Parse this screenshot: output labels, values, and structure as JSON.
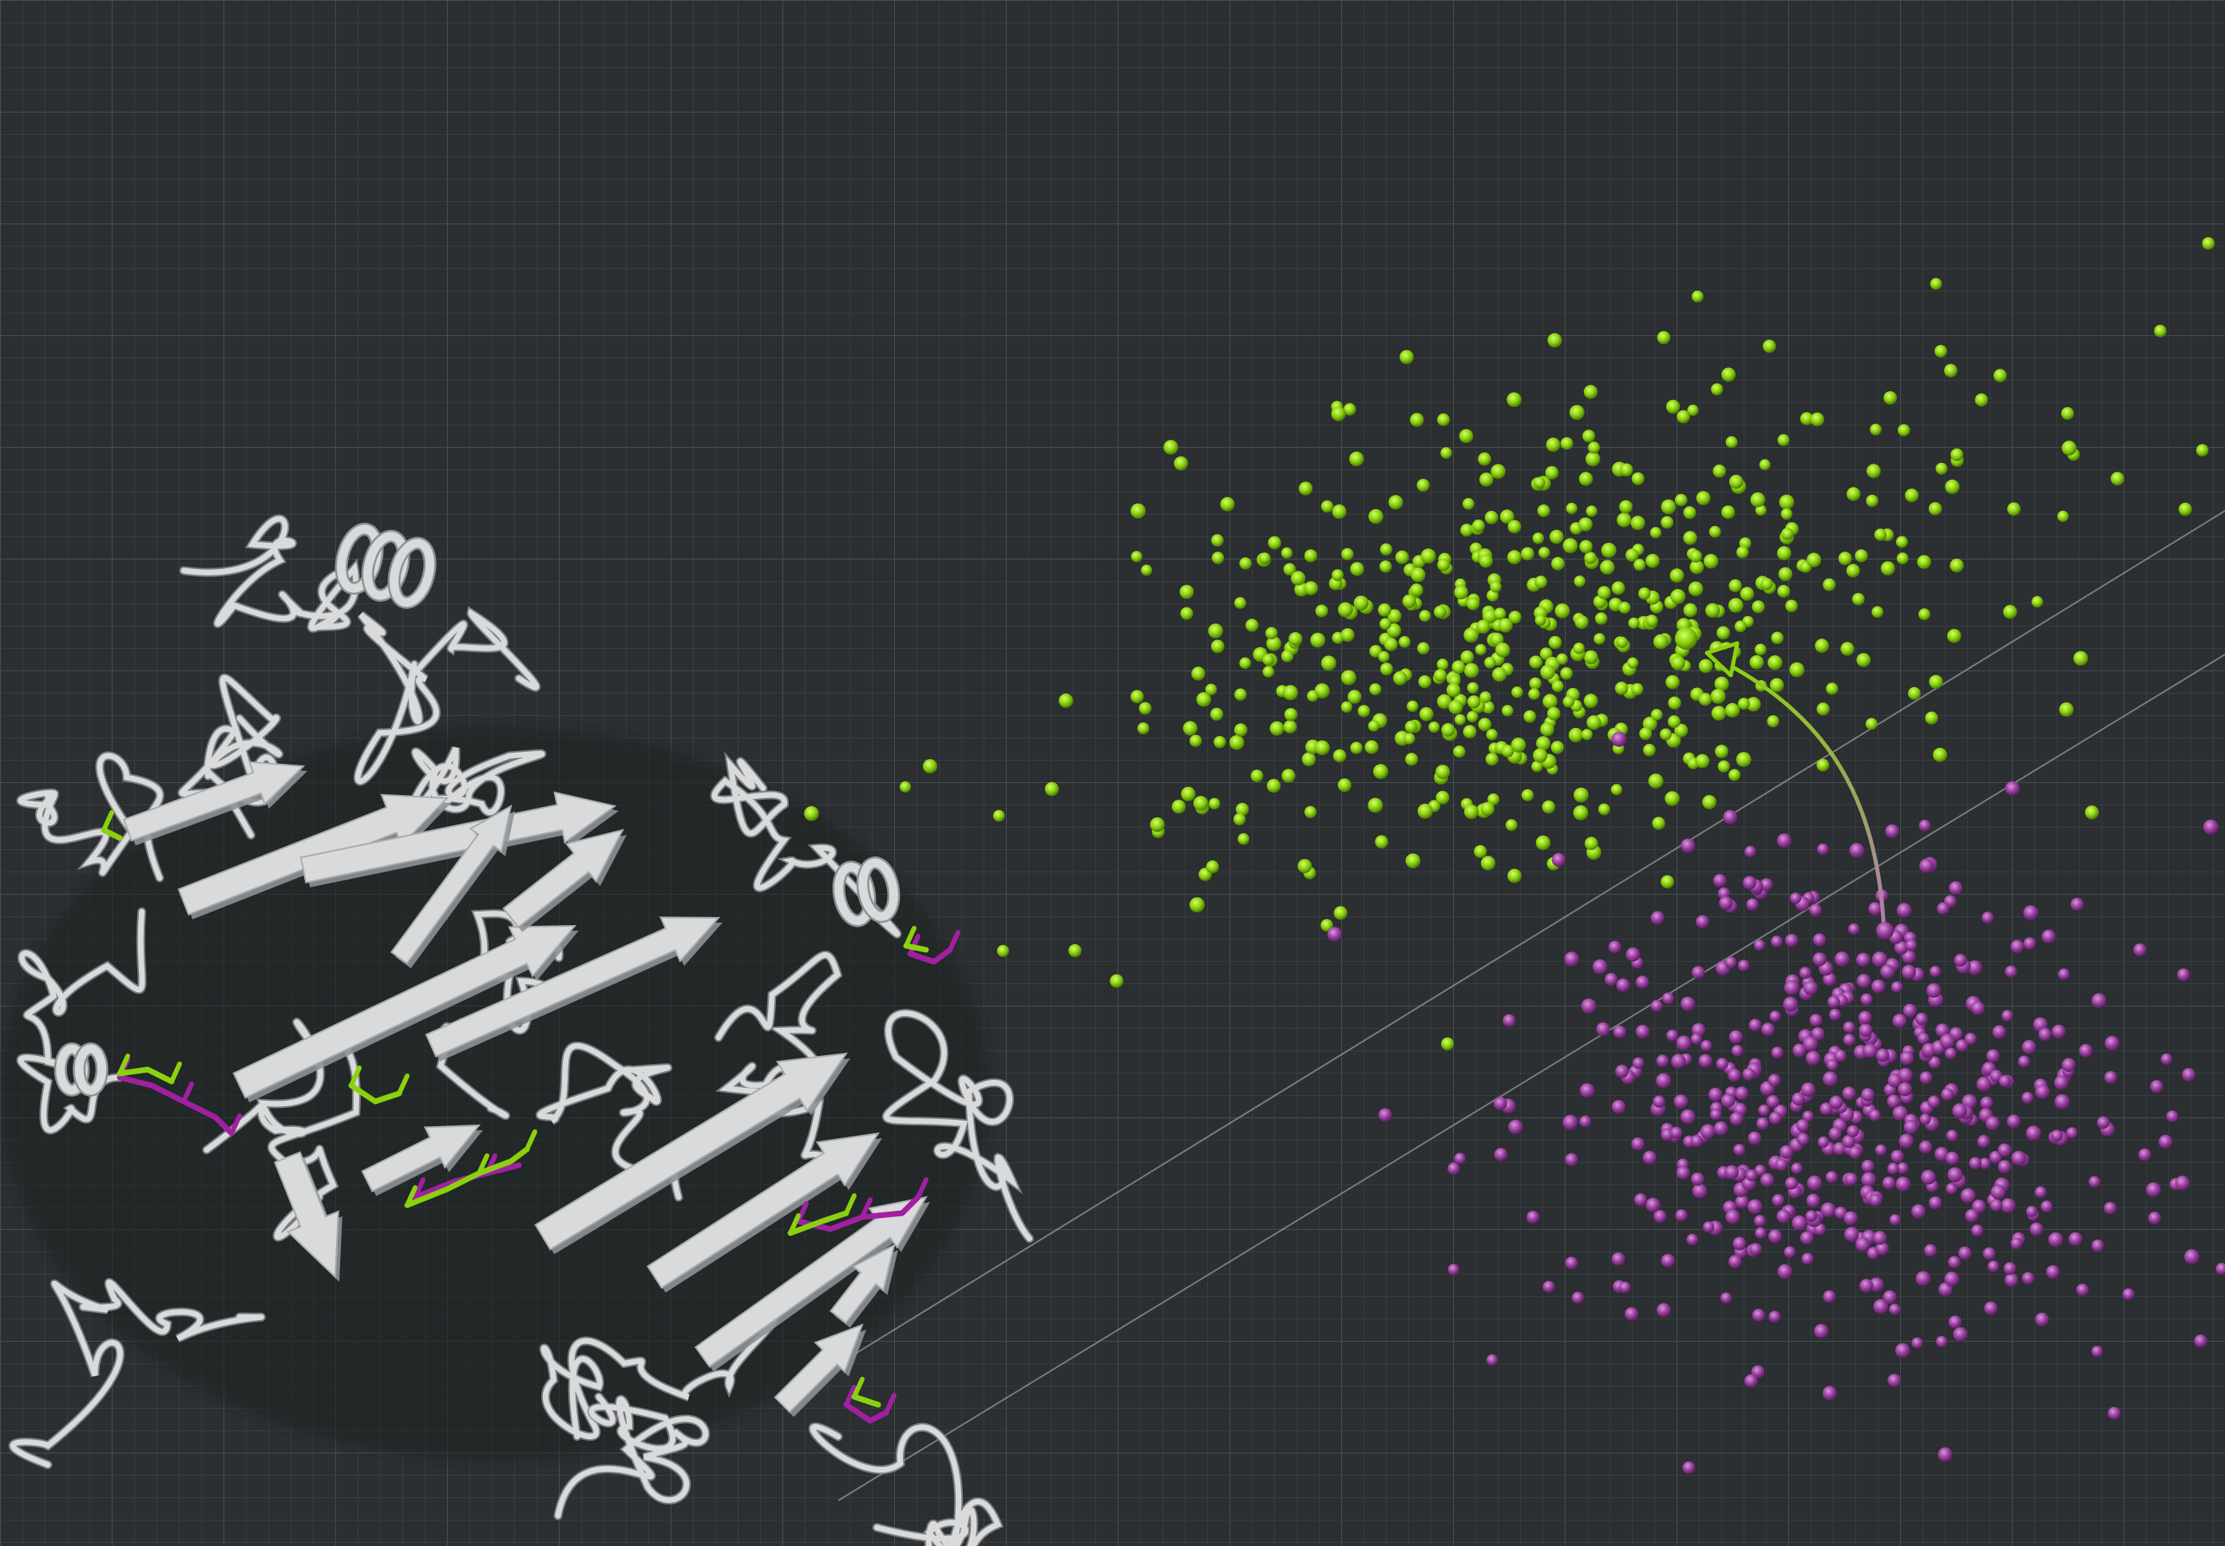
{
  "scene": {
    "background_color": "#2b2f31",
    "grid_minor_color": "#3a4043",
    "grid_major_color": "#454c50",
    "protein_ribbon_color": "#d9dadb",
    "protein_shadow_color": "#8e9193",
    "ligand_state_a_color": "#8bd10f",
    "ligand_state_b_color": "#a020a0",
    "cluster_a": {
      "name": "",
      "color": "#8bd10f",
      "point_count": 560
    },
    "cluster_b": {
      "name": "",
      "color": "#9b3fa0",
      "point_count": 520
    },
    "transition_arrow": {
      "from_color": "#9b3fa0",
      "to_color": "#8bd10f"
    },
    "icons": [
      "protein-ribbon-icon",
      "transition-arrow-icon"
    ]
  }
}
